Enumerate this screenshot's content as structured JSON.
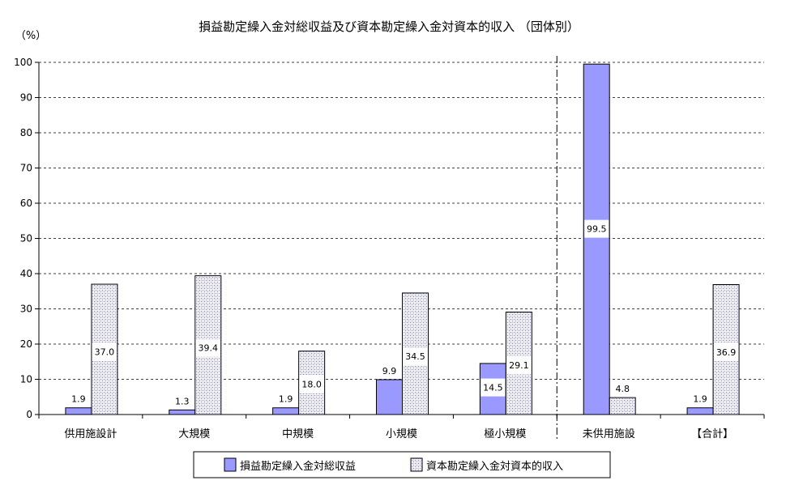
{
  "chart_data": {
    "type": "bar",
    "title": "損益勘定繰入金対総収益及び資本勘定繰入金対資本的収入 （団体別）",
    "ylabel": "（%）",
    "ylim": [
      0,
      100
    ],
    "yticks": [
      0,
      10,
      20,
      30,
      40,
      50,
      60,
      70,
      80,
      90,
      100
    ],
    "grid": "horizontal-dashed",
    "separator_after_category": "極小規模",
    "legend_position": "bottom",
    "categories": [
      "供用施設計",
      "大規模",
      "中規模",
      "小規模",
      "極小規模",
      "未供用施設",
      "【合計】"
    ],
    "series": [
      {
        "name": "損益勘定繰入金対総収益",
        "color": "#9999FF",
        "values": [
          1.9,
          1.3,
          1.9,
          9.9,
          14.5,
          99.5,
          1.9
        ],
        "labels": [
          "1.9",
          "1.3",
          "1.9",
          "9.9",
          "14.5",
          "99.5",
          "1.9"
        ]
      },
      {
        "name": "資本勘定繰入金対資本的収入",
        "color": "#C8C8F0",
        "values": [
          37.0,
          39.4,
          18.0,
          34.5,
          29.1,
          4.8,
          36.9
        ],
        "labels": [
          "37.0",
          "39.4",
          "18.0",
          "34.5",
          "29.1",
          "4.8",
          "36.9"
        ]
      }
    ]
  }
}
